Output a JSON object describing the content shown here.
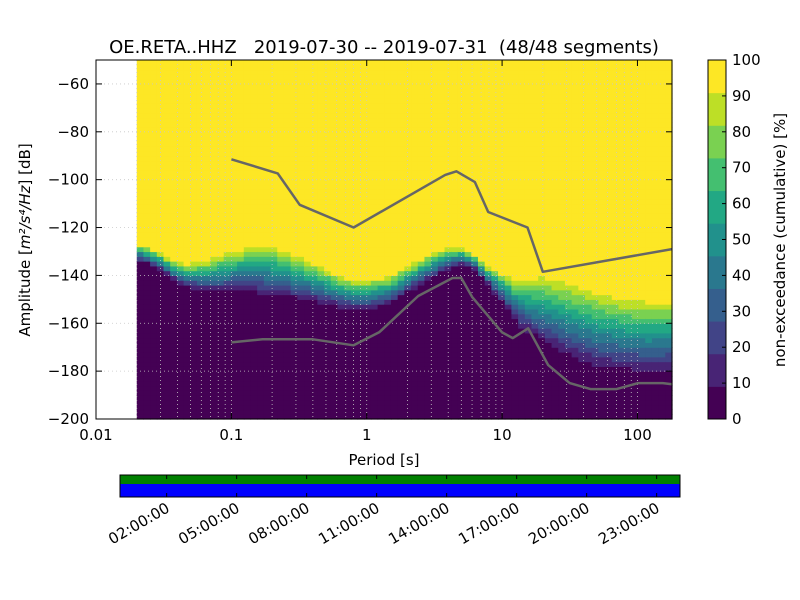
{
  "chart_data": {
    "type": "heatmap",
    "title": "OE.RETA..HHZ   2019-07-30 -- 2019-07-31  (48/48 segments)",
    "xlabel": "Period [s]",
    "ylabel_prefix": "Amplitude [",
    "ylabel_math": "m²/s⁴/Hz",
    "ylabel_suffix": "] [dB]",
    "x_scale": "log",
    "xlim": [
      0.01,
      180
    ],
    "ylim": [
      -200,
      -50
    ],
    "x_ticks": [
      {
        "value": 0.01,
        "label": "0.01"
      },
      {
        "value": 0.1,
        "label": "0.1"
      },
      {
        "value": 1,
        "label": "1"
      },
      {
        "value": 10,
        "label": "10"
      },
      {
        "value": 100,
        "label": "100"
      }
    ],
    "y_ticks": [
      {
        "value": -60,
        "label": "−60"
      },
      {
        "value": -80,
        "label": "−80"
      },
      {
        "value": -100,
        "label": "−100"
      },
      {
        "value": -120,
        "label": "−120"
      },
      {
        "value": -140,
        "label": "−140"
      },
      {
        "value": -160,
        "label": "−160"
      },
      {
        "value": -180,
        "label": "−180"
      },
      {
        "value": -200,
        "label": "−200"
      }
    ],
    "data_start_period": 0.02,
    "colorbar": {
      "label": "non-exceedance (cumulative) [%]",
      "range": [
        0,
        100
      ],
      "ticks": [
        {
          "value": 0,
          "label": "0"
        },
        {
          "value": 10,
          "label": "10"
        },
        {
          "value": 20,
          "label": "20"
        },
        {
          "value": 30,
          "label": "30"
        },
        {
          "value": 40,
          "label": "40"
        },
        {
          "value": 50,
          "label": "50"
        },
        {
          "value": 60,
          "label": "60"
        },
        {
          "value": 70,
          "label": "70"
        },
        {
          "value": 80,
          "label": "80"
        },
        {
          "value": 90,
          "label": "90"
        },
        {
          "value": 100,
          "label": "100"
        }
      ],
      "colors": [
        "#440154",
        "#482475",
        "#414487",
        "#355f8d",
        "#2a788e",
        "#21918c",
        "#22a884",
        "#44bf70",
        "#7ad151",
        "#bddf26",
        "#fde725"
      ]
    },
    "percentile_profile": {
      "description": "approximate cumulative percentile boundaries (dB) per period",
      "period": [
        0.02,
        0.025,
        0.03,
        0.04,
        0.05,
        0.07,
        0.1,
        0.15,
        0.2,
        0.3,
        0.5,
        0.7,
        1.0,
        1.5,
        2.0,
        3.0,
        4.0,
        5.0,
        6.0,
        8.0,
        10.0,
        13.0,
        16.0,
        20.0,
        30.0,
        50.0,
        80.0,
        120.0,
        180.0
      ],
      "p0": [
        -134,
        -136,
        -138,
        -144,
        -146,
        -148,
        -148,
        -149,
        -150,
        -151,
        -153,
        -155,
        -155,
        -153,
        -148,
        -142,
        -138,
        -136,
        -137,
        -145,
        -152,
        -162,
        -166,
        -170,
        -176,
        -181,
        -182,
        -183,
        -182
      ],
      "p100": [
        -126,
        -128,
        -130,
        -134,
        -134,
        -132,
        -128,
        -126,
        -126,
        -130,
        -136,
        -140,
        -141,
        -139,
        -135,
        -130,
        -128,
        -128,
        -130,
        -136,
        -138,
        -140,
        -139,
        -138,
        -140,
        -144,
        -147,
        -148,
        -148
      ]
    },
    "noise_models": [
      {
        "name": "NHNM",
        "color": "#666666",
        "period": [
          0.1,
          0.22,
          0.32,
          0.8,
          3.8,
          4.6,
          6.3,
          7.9,
          15.4,
          20.0,
          180.0
        ],
        "db": [
          -91.5,
          -97.4,
          -110.5,
          -120.0,
          -98.0,
          -96.5,
          -101.0,
          -113.5,
          -120.0,
          -138.5,
          -129.0
        ]
      },
      {
        "name": "NLNM",
        "color": "#666666",
        "period": [
          0.1,
          0.17,
          0.4,
          0.8,
          1.24,
          2.4,
          4.3,
          5.0,
          6.0,
          10.0,
          12.0,
          15.6,
          21.9,
          31.6,
          45.0,
          70.0,
          101.0,
          154.0,
          180.0
        ],
        "db": [
          -168.0,
          -166.7,
          -166.7,
          -169.2,
          -163.7,
          -148.6,
          -141.1,
          -141.1,
          -149.0,
          -163.8,
          -166.2,
          -162.1,
          -177.5,
          -185.0,
          -187.5,
          -187.5,
          -185.0,
          -185.0,
          -185.5
        ]
      }
    ],
    "coverage_timeline": {
      "time_ticks": [
        "02:00:00",
        "05:00:00",
        "08:00:00",
        "11:00:00",
        "14:00:00",
        "17:00:00",
        "20:00:00",
        "23:00:00"
      ],
      "top_band_color": "#008000",
      "bottom_band_color": "#0000ff"
    }
  }
}
